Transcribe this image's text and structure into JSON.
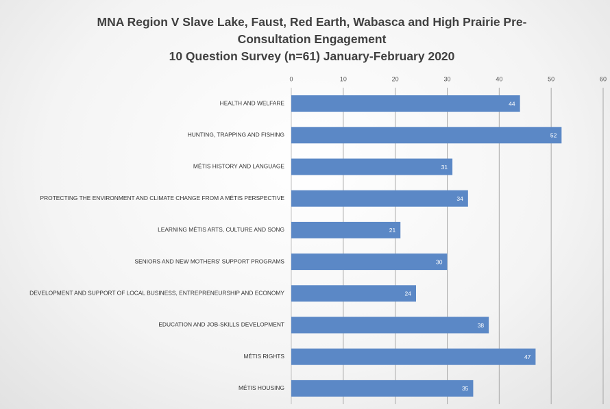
{
  "chart_data": {
    "type": "bar",
    "orientation": "horizontal",
    "title": "MNA Region V Slave Lake, Faust, Red Earth, Wabasca and High Prairie Pre-Consultation Engagement",
    "subtitle": "10 Question Survey (n=61) January-February 2020",
    "categories": [
      "HEALTH AND WELFARE",
      "HUNTING, TRAPPING AND FISHING",
      "MÉTIS HISTORY AND LANGUAGE",
      "PROTECTING THE ENVIRONMENT AND CLIMATE CHANGE FROM A MÉTIS PERSPECTIVE",
      "LEARNING MÉTIS ARTS, CULTURE AND SONG",
      "SENIORS AND NEW MOTHERS' SUPPORT PROGRAMS",
      "DEVELOPMENT AND SUPPORT OF LOCAL BUSINESS, ENTREPRENEURSHIP AND ECONOMY",
      "EDUCATION AND JOB-SKILLS DEVELOPMENT",
      "MÉTIS RIGHTS",
      "MÉTIS HOUSING"
    ],
    "values": [
      44,
      52,
      31,
      34,
      21,
      30,
      24,
      38,
      47,
      35
    ],
    "color": "#5b88c6",
    "xlim": [
      0,
      60
    ],
    "xticks": [
      0,
      10,
      20,
      30,
      40,
      50,
      60
    ],
    "grid": true
  }
}
